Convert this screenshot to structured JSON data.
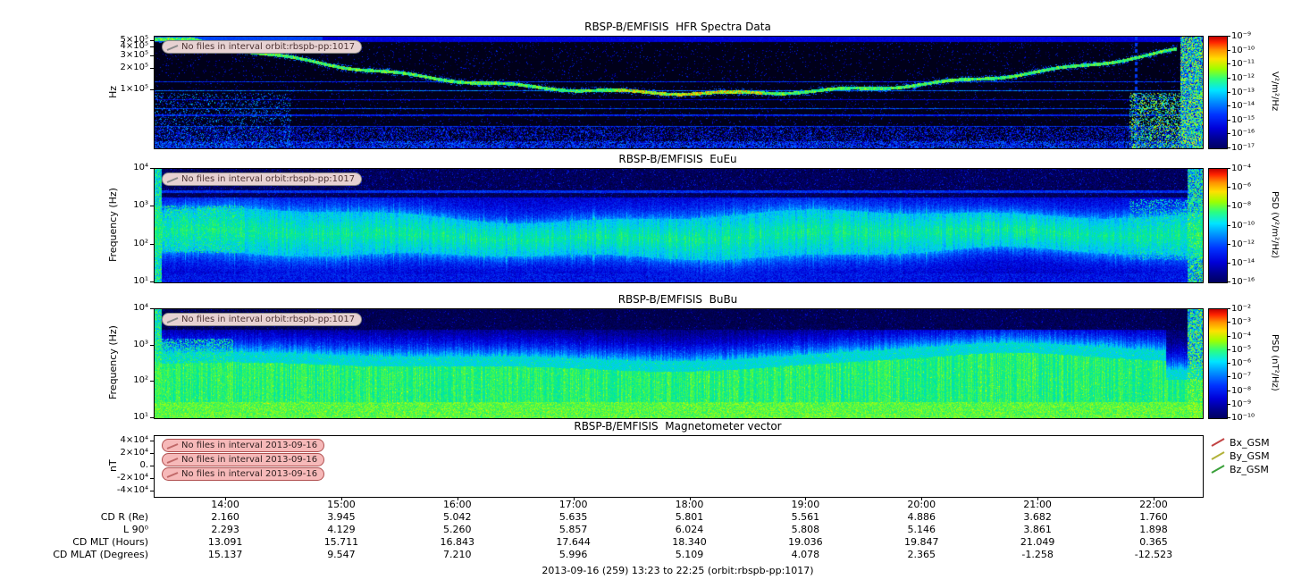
{
  "figure": {
    "bottom_title": "2013-09-16 (259) 13:23 to 22:25 (orbit:rbspb-pp:1017)",
    "time_ticks": [
      "14:00",
      "15:00",
      "16:00",
      "17:00",
      "18:00",
      "19:00",
      "20:00",
      "21:00",
      "22:00"
    ]
  },
  "chart_data": [
    {
      "type": "heatmap",
      "title": "RBSP-B/EMFISIS  HFR Spectra Data",
      "ylabel": "Hz",
      "yscale": "log",
      "ytick_labels": [
        "5×10⁵",
        "4×10⁵",
        "3×10⁵",
        "2×10⁵",
        "1×10⁵"
      ],
      "colorbar": {
        "label": "V²/m²/Hz",
        "tick_labels": [
          "10⁻⁹",
          "10⁻¹⁰",
          "10⁻¹¹",
          "10⁻¹²",
          "10⁻¹³",
          "10⁻¹⁴",
          "10⁻¹⁵",
          "10⁻¹⁶",
          "10⁻¹⁷"
        ]
      },
      "annotation": "No files in interval orbit:rbspb-pp:1017",
      "features": "Upper-hybrid band descends from ~4×10⁵ Hz to ~10⁵ Hz mid-interval then rises again; broadband burst near 22:10; horizontal blue interference lines; dense noise at bottom."
    },
    {
      "type": "heatmap",
      "title": "RBSP-B/EMFISIS  EuEu",
      "ylabel": "Frequency (Hz)",
      "yscale": "log",
      "ytick_labels": [
        "10⁴",
        "10³",
        "10²",
        "10¹"
      ],
      "colorbar": {
        "label": "PSD (V²/m²/Hz)",
        "tick_labels": [
          "10⁻⁴",
          "10⁻⁶",
          "10⁻⁸",
          "10⁻¹⁰",
          "10⁻¹²",
          "10⁻¹⁴",
          "10⁻¹⁶"
        ]
      },
      "annotation": "No files in interval orbit:rbspb-pp:1017",
      "features": "Broad green emission band near 100–700 Hz across the interval, intensified at both ends with vertical streaks."
    },
    {
      "type": "heatmap",
      "title": "RBSP-B/EMFISIS  BuBu",
      "ylabel": "Frequency (Hz)",
      "yscale": "log",
      "ytick_labels": [
        "10⁴",
        "10³",
        "10²",
        "10¹"
      ],
      "colorbar": {
        "label": "PSD (nT²/Hz)",
        "tick_labels": [
          "10⁻²",
          "10⁻³",
          "10⁻⁴",
          "10⁻⁵",
          "10⁻⁶",
          "10⁻⁷",
          "10⁻⁸",
          "10⁻⁹",
          "10⁻¹⁰"
        ]
      },
      "annotation": "No files in interval orbit:rbspb-pp:1017",
      "features": "Intense green band from ~10 Hz up to ~1 kHz, broadening between 20:00 and 21:30; black above 3 kHz."
    },
    {
      "type": "line",
      "title": "RBSP-B/EMFISIS  Magnetometer vector",
      "ylabel": "nT",
      "ytick_labels": [
        "4×10⁴",
        "2×10⁴",
        "0.",
        "-2×10⁴",
        "-4×10⁴"
      ],
      "legend": [
        {
          "label": "Bx_GSM",
          "color": "#c24444"
        },
        {
          "label": "By_GSM",
          "color": "#b2b23a"
        },
        {
          "label": "Bz_GSM",
          "color": "#3aa03a"
        }
      ],
      "annotations": [
        "No files in interval 2013-09-16",
        "No files in interval 2013-09-16",
        "No files in interval 2013-09-16"
      ],
      "series": []
    },
    {
      "type": "table",
      "x_tick_labels": [
        "14:00",
        "15:00",
        "16:00",
        "17:00",
        "18:00",
        "19:00",
        "20:00",
        "21:00",
        "22:00"
      ],
      "rows": [
        {
          "label": "CD R (Re)",
          "values": [
            "2.160",
            "3.945",
            "5.042",
            "5.635",
            "5.801",
            "5.561",
            "4.886",
            "3.682",
            "1.760"
          ]
        },
        {
          "label": "L 90⁰",
          "values": [
            "2.293",
            "4.129",
            "5.260",
            "5.857",
            "6.024",
            "5.808",
            "5.146",
            "3.861",
            "1.898"
          ]
        },
        {
          "label": "CD MLT (Hours)",
          "values": [
            "13.091",
            "15.711",
            "16.843",
            "17.644",
            "18.340",
            "19.036",
            "19.847",
            "21.049",
            "0.365"
          ]
        },
        {
          "label": "CD MLAT (Degrees)",
          "values": [
            "15.137",
            "9.547",
            "7.210",
            "5.996",
            "5.109",
            "4.078",
            "2.365",
            "-1.258",
            "-12.523"
          ]
        }
      ]
    }
  ]
}
